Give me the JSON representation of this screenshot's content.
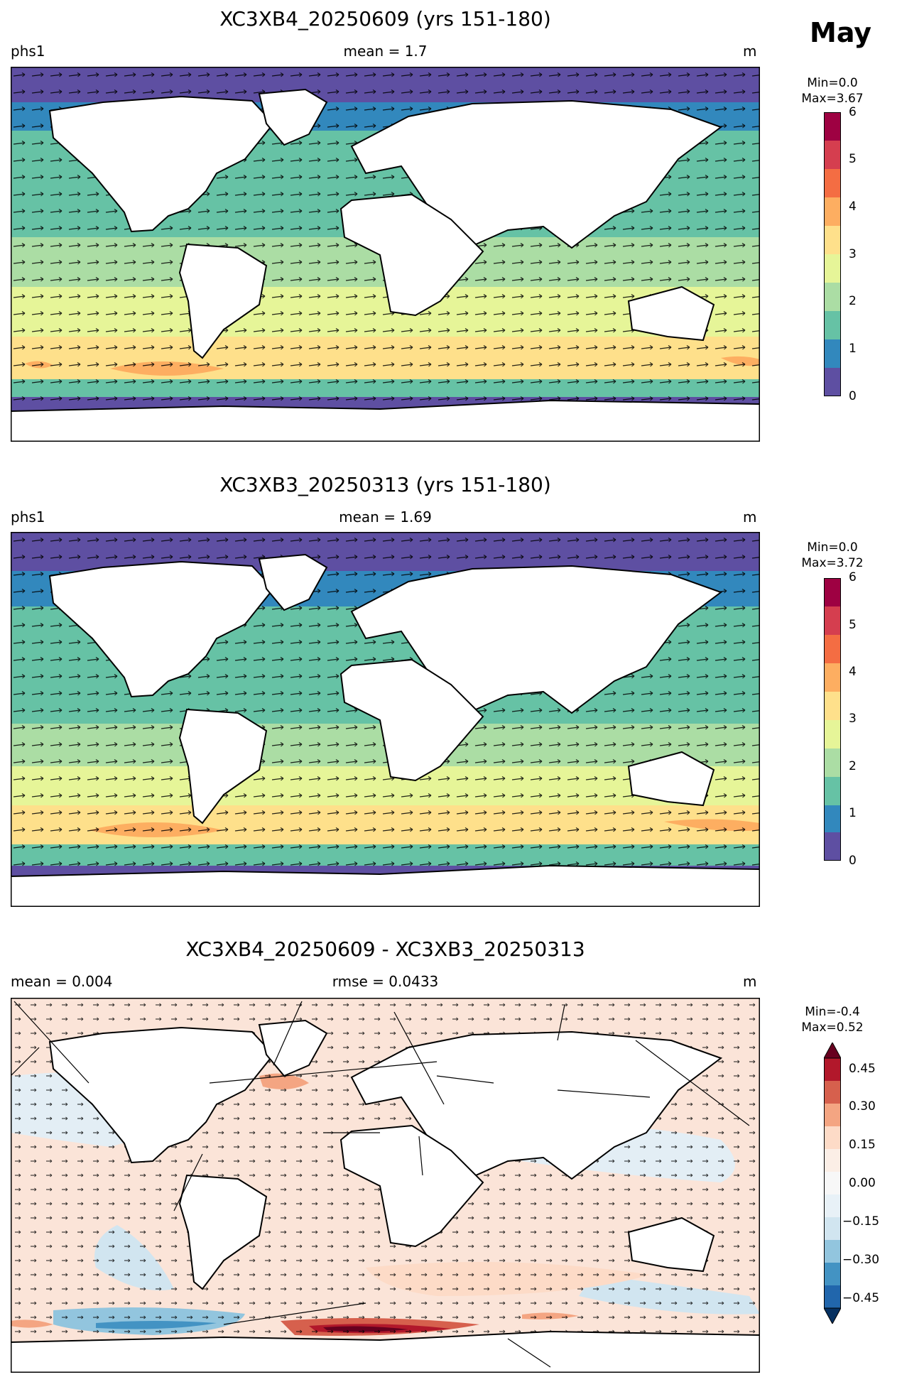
{
  "month": "May",
  "panels": [
    {
      "title": "XC3XB4_20250609 (yrs 151-180)",
      "left_label": "phs1",
      "center_label": "mean = 1.7",
      "right_label": "m",
      "colorbar_min": "Min=0.0",
      "colorbar_max": "Max=3.67",
      "ticks": [
        "6",
        "5",
        "4",
        "3",
        "2",
        "1",
        "0"
      ]
    },
    {
      "title": "XC3XB3_20250313 (yrs 151-180)",
      "left_label": "phs1",
      "center_label": "mean = 1.69",
      "right_label": "m",
      "colorbar_min": "Min=0.0",
      "colorbar_max": "Max=3.72",
      "ticks": [
        "6",
        "5",
        "4",
        "3",
        "2",
        "1",
        "0"
      ]
    },
    {
      "title": "XC3XB4_20250609 - XC3XB3_20250313",
      "left_label": "mean = 0.004",
      "center_label": "rmse = 0.0433",
      "right_label": "m",
      "colorbar_min": "Min=-0.4",
      "colorbar_max": "Max=0.52",
      "ticks": [
        "0.45",
        "0.30",
        "0.15",
        "0.00",
        "−0.15",
        "−0.30",
        "−0.45"
      ]
    }
  ],
  "colors": {
    "seq": [
      "#5e4fa2",
      "#3288bd",
      "#66c2a5",
      "#abdda4",
      "#e6f598",
      "#fee08b",
      "#fdae61",
      "#f46d43",
      "#d53e4f",
      "#9e0142"
    ],
    "div": [
      "#053061",
      "#2166ac",
      "#4393c3",
      "#92c5de",
      "#d1e5f0",
      "#f7f7f7",
      "#fddbc7",
      "#f4a582",
      "#d6604d",
      "#b2182b",
      "#67001f"
    ]
  }
}
